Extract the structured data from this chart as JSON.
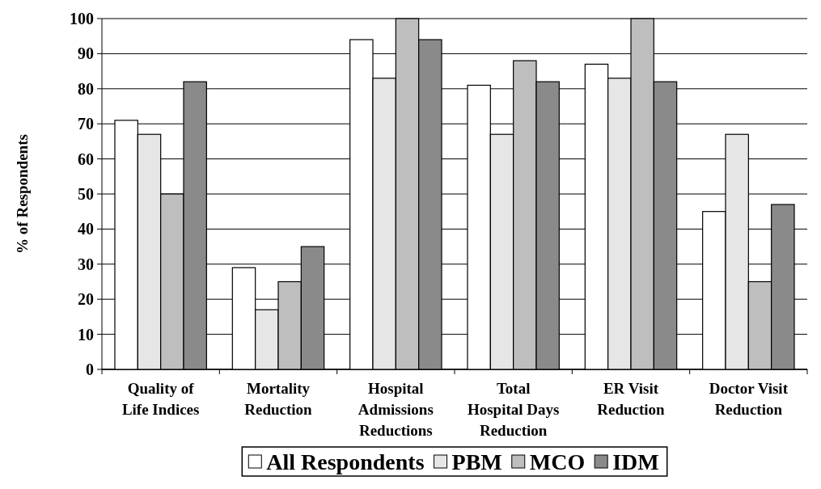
{
  "chart_data": {
    "type": "bar",
    "ylabel": "% of Respondents",
    "categories": [
      "Quality of\nLife Indices",
      "Mortality\nReduction",
      "Hospital\nAdmissions\nReductions",
      "Total\nHospital Days\nReduction",
      "ER Visit\nReduction",
      "Doctor Visit\nReduction"
    ],
    "series": [
      {
        "name": "All Respondents",
        "color": "#ffffff",
        "values": [
          71,
          29,
          94,
          81,
          87,
          45
        ]
      },
      {
        "name": "PBM",
        "color": "#e6e6e6",
        "values": [
          67,
          17,
          83,
          67,
          83,
          67
        ]
      },
      {
        "name": "MCO",
        "color": "#bebebe",
        "values": [
          50,
          25,
          100,
          88,
          100,
          25
        ]
      },
      {
        "name": "IDM",
        "color": "#8a8a8a",
        "values": [
          82,
          35,
          94,
          82,
          82,
          47
        ]
      }
    ],
    "ylim": [
      0,
      100
    ],
    "yticks": [
      0,
      10,
      20,
      30,
      40,
      50,
      60,
      70,
      80,
      90,
      100
    ],
    "grid": "y",
    "legend": "bottom"
  }
}
